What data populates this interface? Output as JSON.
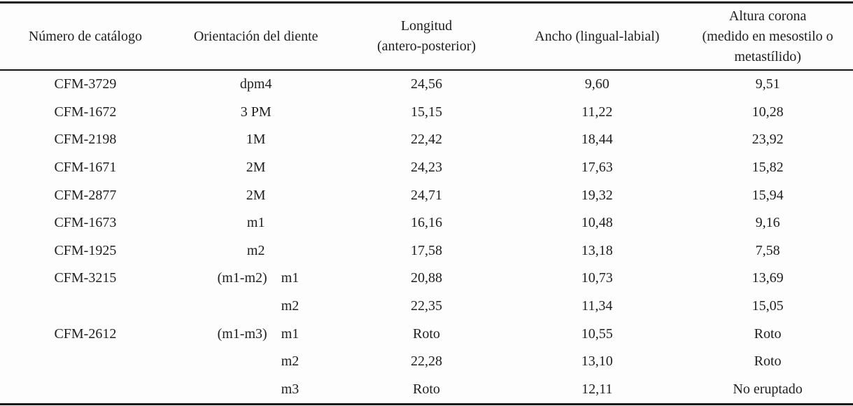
{
  "colors": {
    "background": "#fdfdfd",
    "text": "#1e1e1e",
    "rule": "#141414"
  },
  "table": {
    "headers": [
      {
        "id": "catalogo",
        "lines": [
          "Número de catálogo"
        ]
      },
      {
        "id": "orientacion",
        "lines": [
          "Orientación del diente"
        ]
      },
      {
        "id": "longitud",
        "lines": [
          "Longitud",
          "(antero-posterior)"
        ]
      },
      {
        "id": "ancho",
        "lines": [
          "Ancho (lingual-labial)"
        ]
      },
      {
        "id": "altura",
        "lines": [
          "Altura corona",
          "(medido en mesostilo o",
          "metastílido)"
        ]
      }
    ],
    "rows": [
      {
        "catalogo": "CFM-3729",
        "orient_prefix": "",
        "orient_tooth": "dpm4",
        "longitud": "24,56",
        "ancho": "9,60",
        "altura": "9,51"
      },
      {
        "catalogo": "CFM-1672",
        "orient_prefix": "",
        "orient_tooth": "3 PM",
        "longitud": "15,15",
        "ancho": "11,22",
        "altura": "10,28"
      },
      {
        "catalogo": "CFM-2198",
        "orient_prefix": "",
        "orient_tooth": "1M",
        "longitud": "22,42",
        "ancho": "18,44",
        "altura": "23,92"
      },
      {
        "catalogo": "CFM-1671",
        "orient_prefix": "",
        "orient_tooth": "2M",
        "longitud": "24,23",
        "ancho": "17,63",
        "altura": "15,82"
      },
      {
        "catalogo": "CFM-2877",
        "orient_prefix": "",
        "orient_tooth": "2M",
        "longitud": "24,71",
        "ancho": "19,32",
        "altura": "15,94"
      },
      {
        "catalogo": "CFM-1673",
        "orient_prefix": "",
        "orient_tooth": "m1",
        "longitud": "16,16",
        "ancho": "10,48",
        "altura": "9,16"
      },
      {
        "catalogo": "CFM-1925",
        "orient_prefix": "",
        "orient_tooth": "m2",
        "longitud": "17,58",
        "ancho": "13,18",
        "altura": "7,58"
      },
      {
        "catalogo": "CFM-3215",
        "orient_prefix": "(m1-m2)",
        "orient_tooth": "m1",
        "longitud": "20,88",
        "ancho": "10,73",
        "altura": "13,69"
      },
      {
        "catalogo": "",
        "orient_prefix": "",
        "orient_tooth": "m2",
        "longitud": "22,35",
        "ancho": "11,34",
        "altura": "15,05"
      },
      {
        "catalogo": "CFM-2612",
        "orient_prefix": "(m1-m3)",
        "orient_tooth": "m1",
        "longitud": "Roto",
        "ancho": "10,55",
        "altura": "Roto"
      },
      {
        "catalogo": "",
        "orient_prefix": "",
        "orient_tooth": "m2",
        "longitud": "22,28",
        "ancho": "13,10",
        "altura": "Roto"
      },
      {
        "catalogo": "",
        "orient_prefix": "",
        "orient_tooth": "m3",
        "longitud": "Roto",
        "ancho": "12,11",
        "altura": "No eruptado"
      }
    ]
  }
}
